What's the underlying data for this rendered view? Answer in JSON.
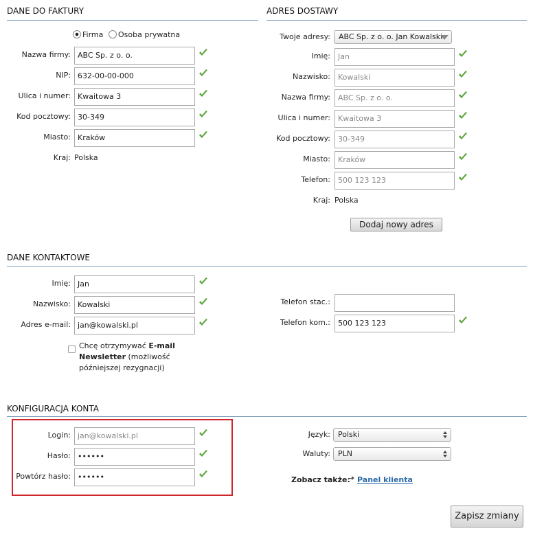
{
  "invoice": {
    "title": "DANE DO FAKTURY",
    "type_options": [
      "Firma",
      "Osoba prywatna"
    ],
    "fields": [
      {
        "label": "Nazwa firmy:",
        "value": "ABC Sp. z o. o."
      },
      {
        "label": "NIP:",
        "value": "632-00-00-000"
      },
      {
        "label": "Ulica i numer:",
        "value": "Kwaitowa 3"
      },
      {
        "label": "Kod pocztowy:",
        "value": "30-349"
      },
      {
        "label": "Miasto:",
        "value": "Kraków"
      }
    ],
    "country_label": "Kraj:",
    "country": "Polska"
  },
  "delivery": {
    "title": "ADRES DOSTAWY",
    "address_label": "Twoje adresy:",
    "address": "ABC Sp. z o. o. Jan Kowalski",
    "fields": [
      {
        "label": "Imię:",
        "value": "Jan"
      },
      {
        "label": "Nazwisko:",
        "value": "Kowalski"
      },
      {
        "label": "Nazwa firmy:",
        "value": "ABC Sp. z o. o."
      },
      {
        "label": "Ulica i numer:",
        "value": "Kwaitowa 3"
      },
      {
        "label": "Kod pocztowy:",
        "value": "30-349"
      },
      {
        "label": "Miasto:",
        "value": "Kraków"
      },
      {
        "label": "Telefon:",
        "value": "500 123 123"
      }
    ],
    "country_label": "Kraj:",
    "country": "Polska",
    "add_button": "Dodaj nowy adres"
  },
  "contact": {
    "title": "DANE KONTAKTOWE",
    "fields": [
      {
        "label": "Imię:",
        "value": "Jan"
      },
      {
        "label": "Nazwisko:",
        "value": "Kowalski"
      },
      {
        "label": "Adres e-mail:",
        "value": "jan@kowalski.pl"
      }
    ],
    "phone_fields": [
      {
        "label": "Telefon stac.:"
      },
      {
        "label": "Telefon kom.:",
        "value": "500 123 123"
      }
    ],
    "newsletter": [
      "Chcę otrzymywać",
      "E-mail Newsletter",
      "(możliwość późniejszej rezygnacji)"
    ]
  },
  "account": {
    "title": "KONFIGURACJA KONTA",
    "fields": [
      {
        "label": "Login:",
        "value": "jan@kowalski.pl"
      },
      {
        "label": "Hasło:",
        "value": "••••••"
      },
      {
        "label": "Powtórz hasło:",
        "value": "••••••"
      }
    ],
    "language_label": "Język:",
    "language": "Polski",
    "currency_label": "Waluty:",
    "currency": "PLN",
    "see_also": "Zobacz także:",
    "link": "Panel klienta"
  },
  "save_button": "Zapisz zmiany"
}
